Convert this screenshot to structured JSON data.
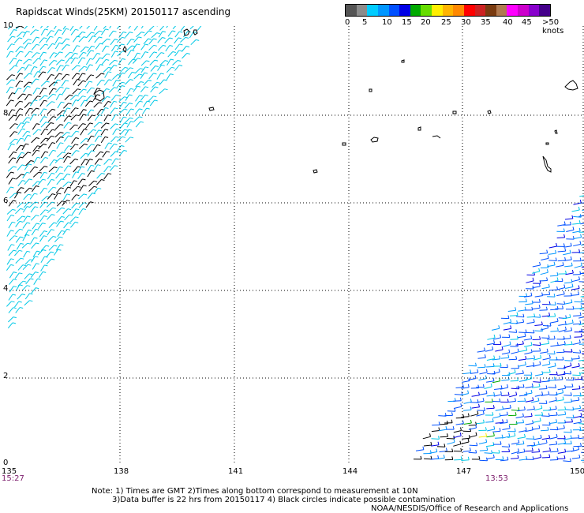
{
  "header": {
    "title": "Rapidscat Winds(25KM) 20150117 ascending"
  },
  "legend": {
    "colors": [
      "#555555",
      "#8c8c8c",
      "#00ccff",
      "#0096ff",
      "#0050ff",
      "#0000e6",
      "#00aa00",
      "#66dd00",
      "#ffee00",
      "#ffb400",
      "#ff8800",
      "#ff0000",
      "#cc2222",
      "#7a3b10",
      "#b07a50",
      "#ff00ff",
      "#cc00cc",
      "#8800cc",
      "#44008a"
    ],
    "labels": [
      "0",
      "5",
      "10",
      "15",
      "20",
      "25",
      "30",
      "35",
      "40",
      "45",
      ">50 knots"
    ]
  },
  "axes": {
    "x_ticks": [
      "135",
      "138",
      "141",
      "144",
      "147",
      "150"
    ],
    "y_ticks": [
      "10",
      "8",
      "6",
      "4",
      "2",
      "0"
    ],
    "time_left": "15:27",
    "time_right": "13:53"
  },
  "notes": {
    "line1": "Note: 1) Times are GMT 2)Times along bottom correspond to measurement at 10N",
    "line2": "3)Data buffer is 22 hrs from 20150117 4) Black circles indicate possible contamination"
  },
  "credit": "NOAA/NESDIS/Office of Research and Applications",
  "wind_swaths": [
    {
      "name": "northwest",
      "colors": [
        "#00c8e6",
        "#00c8e6",
        "#00c8e6",
        "#000000"
      ]
    },
    {
      "name": "southeast",
      "colors": [
        "#0050ff",
        "#0096ff",
        "#0000e6",
        "#00c8e6",
        "#000000",
        "#00aa00",
        "#ffee00"
      ]
    }
  ]
}
